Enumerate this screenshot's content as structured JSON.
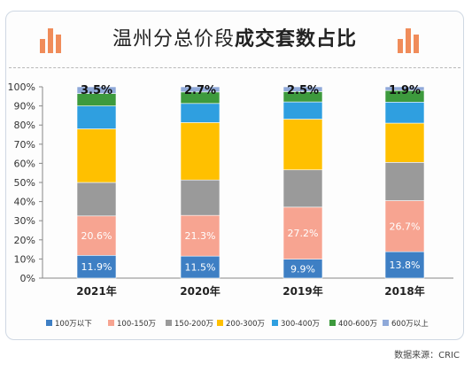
{
  "header": {
    "title_part1": "温州分总价段",
    "title_part2": "成交套数占比"
  },
  "source_text": "数据来源：CRIC",
  "colors": {
    "icon": "#f08c5a",
    "segments": [
      "#3e7fc4",
      "#f7a491",
      "#9a9a9a",
      "#ffc000",
      "#2f9fe0",
      "#3d9a3d",
      "#8fa9d9"
    ]
  },
  "chart_data": {
    "type": "bar",
    "stacked": true,
    "percent": true,
    "title": "温州分总价段成交套数占比",
    "categories": [
      "2021年",
      "2020年",
      "2019年",
      "2018年"
    ],
    "ylim": [
      0,
      100
    ],
    "yticks": [
      "0%",
      "10%",
      "20%",
      "30%",
      "40%",
      "50%",
      "60%",
      "70%",
      "80%",
      "90%",
      "100%"
    ],
    "grid": false,
    "legend_position": "bottom",
    "series": [
      {
        "name": "100万以下",
        "values": [
          11.9,
          11.5,
          9.9,
          13.8
        ],
        "labels": [
          "11.9%",
          "11.5%",
          "9.9%",
          "13.8%"
        ]
      },
      {
        "name": "100-150万",
        "values": [
          20.6,
          21.3,
          27.2,
          26.7
        ],
        "labels": [
          "20.6%",
          "21.3%",
          "27.2%",
          "26.7%"
        ]
      },
      {
        "name": "150-200万",
        "values": [
          17.5,
          18.5,
          19.5,
          20.0
        ]
      },
      {
        "name": "200-300万",
        "values": [
          28.0,
          30.0,
          26.5,
          20.5
        ]
      },
      {
        "name": "300-400万",
        "values": [
          12.0,
          10.0,
          9.0,
          11.0
        ]
      },
      {
        "name": "400-600万",
        "values": [
          6.5,
          6.0,
          5.4,
          6.1
        ]
      },
      {
        "name": "600万以上",
        "values": [
          3.5,
          2.7,
          2.5,
          1.9
        ],
        "labels": [
          "3.5%",
          "2.7%",
          "2.5%",
          "1.9%"
        ]
      }
    ]
  }
}
